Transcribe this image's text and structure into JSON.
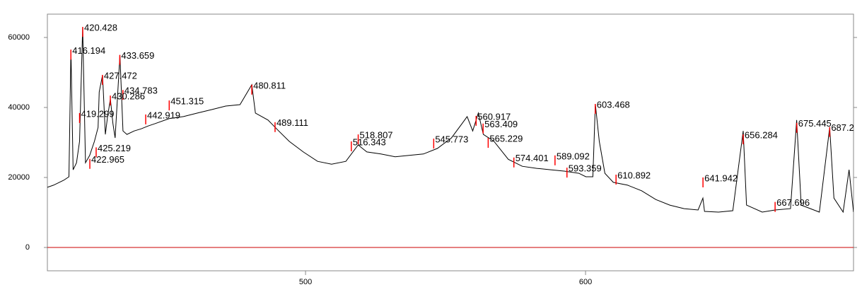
{
  "chart_data": {
    "type": "line",
    "x": [
      407.8,
      410,
      413.6,
      415.5,
      416.2,
      417,
      418.2,
      419.3,
      420.4,
      421.4,
      422.9,
      424.6,
      425.9,
      426.3,
      427.5,
      428.5,
      429.3,
      430.3,
      431.2,
      432,
      432.8,
      433.7,
      434.8,
      436.2,
      438.8,
      441.3,
      443.8,
      446.3,
      451.3,
      456.4,
      461.4,
      466.5,
      471.5,
      476.6,
      480.8,
      482.1,
      486.6,
      490.4,
      494.2,
      499.2,
      504.3,
      509.3,
      514.4,
      518.8,
      521.9,
      526.9,
      532,
      537,
      542.1,
      547.1,
      552.1,
      555.9,
      557.7,
      559.7,
      561.7,
      563.5,
      567.3,
      572.4,
      577.4,
      582.5,
      587.5,
      592.6,
      597.6,
      600.1,
      602.6,
      603.5,
      604.9,
      606.9,
      609.9,
      615,
      620,
      625.1,
      630.1,
      635.2,
      640.2,
      641.9,
      642.5,
      647.5,
      652.6,
      656.3,
      657.5,
      663.1,
      667.7,
      673.2,
      675.4,
      677,
      683.5,
      687.2,
      688.7,
      692,
      694.1,
      695.7
    ],
    "series": [
      {
        "color": "#000000",
        "values": [
          17200,
          17800,
          19200,
          20200,
          56500,
          22200,
          24200,
          30300,
          63000,
          24200,
          26300,
          30300,
          34300,
          44400,
          49300,
          32300,
          37400,
          42400,
          35400,
          31300,
          42400,
          55000,
          33300,
          32300,
          33300,
          33900,
          34700,
          35400,
          36800,
          37400,
          38400,
          39400,
          40400,
          40800,
          46500,
          38400,
          36400,
          33300,
          30300,
          27300,
          24600,
          23800,
          24600,
          29300,
          27300,
          26700,
          25900,
          26300,
          26700,
          28300,
          31300,
          35400,
          37400,
          33300,
          38400,
          32300,
          30300,
          25200,
          23200,
          22600,
          22200,
          21800,
          21200,
          20200,
          20200,
          41000,
          30300,
          21200,
          18600,
          17800,
          16200,
          13700,
          12100,
          11100,
          10700,
          14100,
          10300,
          10100,
          10500,
          33300,
          12100,
          10100,
          10700,
          11100,
          36400,
          12100,
          10100,
          34300,
          14100,
          10100,
          22200,
          10100
        ]
      }
    ],
    "peaks": [
      {
        "x": 420.428,
        "y": 63000
      },
      {
        "x": 416.194,
        "y": 56500
      },
      {
        "x": 433.659,
        "y": 55000
      },
      {
        "x": 427.472,
        "y": 49300
      },
      {
        "x": 434.783,
        "y": 45000
      },
      {
        "x": 430.286,
        "y": 43400
      },
      {
        "x": 419.299,
        "y": 38400
      },
      {
        "x": 425.219,
        "y": 28600
      },
      {
        "x": 422.965,
        "y": 25300
      },
      {
        "x": 442.919,
        "y": 38000
      },
      {
        "x": 451.315,
        "y": 42000
      },
      {
        "x": 480.811,
        "y": 46500
      },
      {
        "x": 489.111,
        "y": 35800
      },
      {
        "x": 518.807,
        "y": 32300
      },
      {
        "x": 516.343,
        "y": 30300
      },
      {
        "x": 545.773,
        "y": 31100
      },
      {
        "x": 560.917,
        "y": 37600
      },
      {
        "x": 563.409,
        "y": 35400
      },
      {
        "x": 565.229,
        "y": 31300
      },
      {
        "x": 574.401,
        "y": 25700
      },
      {
        "x": 589.092,
        "y": 26300
      },
      {
        "x": 593.359,
        "y": 22800
      },
      {
        "x": 603.468,
        "y": 41000
      },
      {
        "x": 610.892,
        "y": 20800
      },
      {
        "x": 641.942,
        "y": 20000
      },
      {
        "x": 656.284,
        "y": 32300
      },
      {
        "x": 667.696,
        "y": 13000
      },
      {
        "x": 675.445,
        "y": 35600
      },
      {
        "x": 687.2,
        "y": 34400
      }
    ],
    "peak_color": "#ff0000",
    "baseline_color": "#cc0000",
    "xlim": [
      407.8,
      695.7
    ],
    "ylim": [
      -6667,
      66667
    ],
    "xticks": [
      500,
      600
    ],
    "yticks": [
      0,
      20000,
      40000,
      60000
    ]
  }
}
